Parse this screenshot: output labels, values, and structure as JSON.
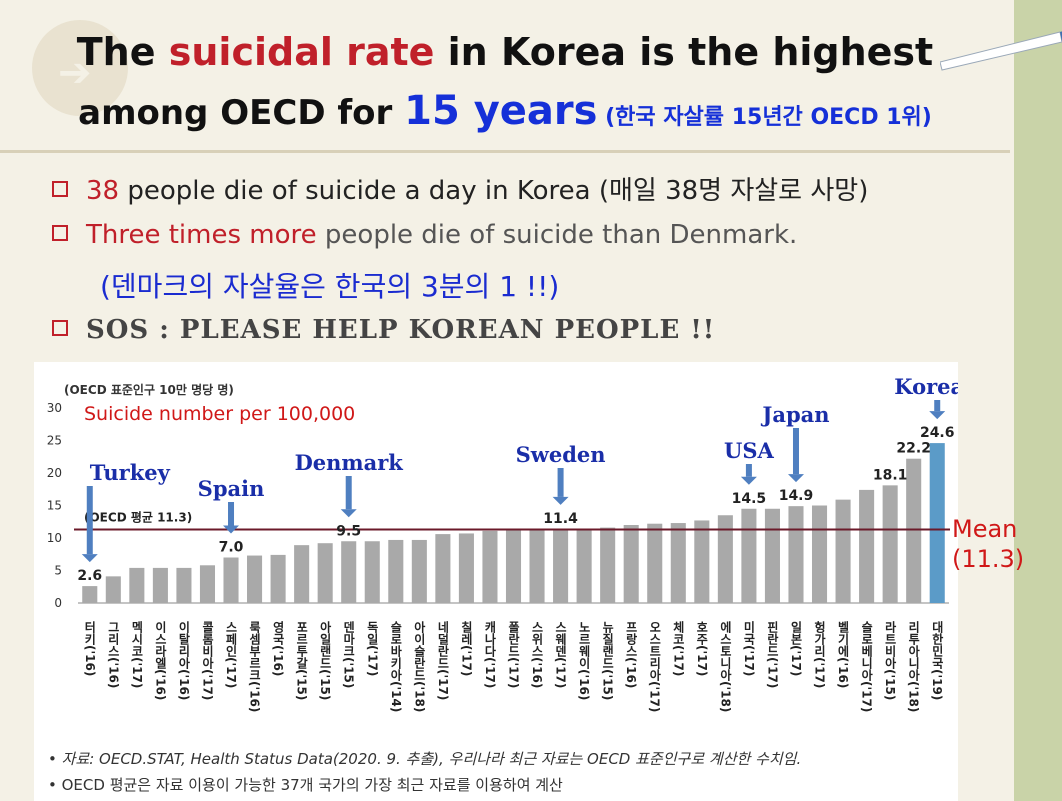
{
  "title": {
    "line1_pre": "The ",
    "line1_red": "suicidal rate",
    "line1_post": " in Korea is the highest",
    "line2_pre": "among OECD for ",
    "line2_blue": "15 years",
    "line2_kr": " (한국 자살률 15년간  OECD 1위)"
  },
  "bullets": {
    "b1_red": "38",
    "b1_text": " people die of suicide a day in Korea (매일 38명 자살로 사망)",
    "b2_red": "Three times more",
    "b2_text": " people die of suicide than Denmark.",
    "b2_kr": "(덴마크의 자살율은 한국의 3분의 1 !!)",
    "b3": "SOS : PLEASE HELP KOREAN PEOPLE !!"
  },
  "mean_label": {
    "line1": "Mean",
    "line2": "(11.3)"
  },
  "footnotes": {
    "fn1": "• 자료: OECD.STAT, Health Status Data(2020. 9. 추출), 우리나라 최근 자료는 OECD 표준인구로 계산한 수치임.",
    "fn2": "• OECD 평균은 자료 이용이 가능한 37개 국가의 가장 최근 자료를 이용하여 계산"
  },
  "colors": {
    "bar": "#a9a9a9",
    "highlight": "#5b9bc8",
    "mean_line": "#6b1a2a",
    "callout": "#1a2ea8",
    "arrow": "#4f7fc0"
  },
  "chart_data": {
    "type": "bar",
    "unit_label": "(OECD 표준인구 10만 명당 명)",
    "title": "Suicide number per 100,000",
    "ylim": [
      0,
      30
    ],
    "yticks": [
      0,
      5,
      10,
      15,
      20,
      25,
      30
    ],
    "mean": 11.3,
    "mean_label": "(OECD 평균 11.3)",
    "categories": [
      "터키('16)",
      "그리스('16)",
      "멕시코('17)",
      "이스라엘('16)",
      "이탈리아('16)",
      "콜롬비아('17)",
      "스페인('17)",
      "룩셈부르크('16)",
      "영국('16)",
      "포르투갈('15)",
      "아일랜드('15)",
      "덴마크('15)",
      "독일('17)",
      "슬로바키아('14)",
      "아이슬란드('18)",
      "네덜란드('17)",
      "칠레('17)",
      "캐나다('17)",
      "폴란드('17)",
      "스위스('16)",
      "스웨덴('17)",
      "노르웨이('16)",
      "뉴질랜드('15)",
      "프랑스('16)",
      "오스트리아('17)",
      "체코('17)",
      "호주('17)",
      "에스토니아('18)",
      "미국('17)",
      "핀란드('17)",
      "일본('17)",
      "헝가리('17)",
      "벨기에('16)",
      "슬로베니아('17)",
      "라트비아('15)",
      "리투아니아('18)",
      "대한민국('19)"
    ],
    "values": [
      2.6,
      4.1,
      5.4,
      5.4,
      5.4,
      5.8,
      7.0,
      7.3,
      7.4,
      8.9,
      9.2,
      9.5,
      9.5,
      9.7,
      9.7,
      10.6,
      10.7,
      11.1,
      11.2,
      11.3,
      11.4,
      11.4,
      11.6,
      12.0,
      12.2,
      12.3,
      12.7,
      13.5,
      14.5,
      14.5,
      14.9,
      15.0,
      15.9,
      17.4,
      18.1,
      22.2,
      24.6
    ],
    "value_labels": [
      {
        "index": 0,
        "text": "2.6"
      },
      {
        "index": 6,
        "text": "7.0"
      },
      {
        "index": 11,
        "text": "9.5"
      },
      {
        "index": 20,
        "text": "11.4"
      },
      {
        "index": 28,
        "text": "14.5"
      },
      {
        "index": 30,
        "text": "14.9"
      },
      {
        "index": 34,
        "text": "18.1"
      },
      {
        "index": 35,
        "text": "22.2"
      },
      {
        "index": 36,
        "text": "24.6"
      }
    ],
    "callouts": [
      {
        "index": 0,
        "text": "Turkey"
      },
      {
        "index": 6,
        "text": "Spain"
      },
      {
        "index": 11,
        "text": "Denmark"
      },
      {
        "index": 20,
        "text": "Sweden"
      },
      {
        "index": 28,
        "text": "USA"
      },
      {
        "index": 30,
        "text": "Japan"
      },
      {
        "index": 36,
        "text": "Korea"
      }
    ],
    "highlight_index": 36
  }
}
